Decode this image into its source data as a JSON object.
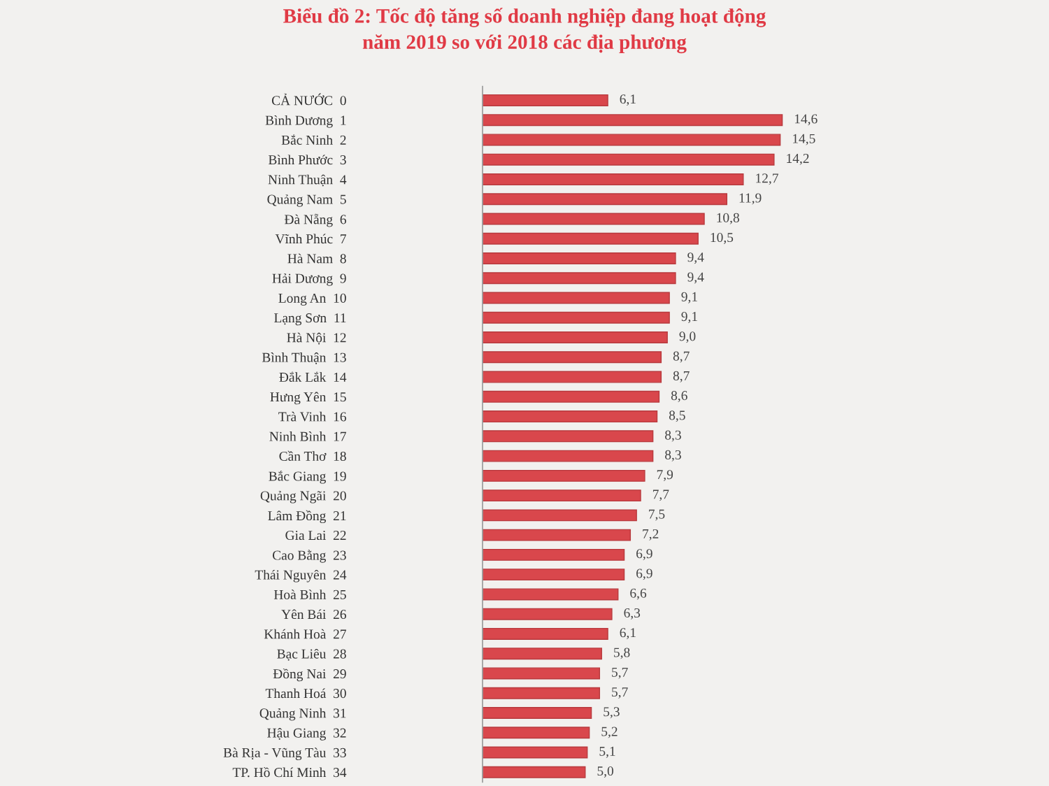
{
  "chart_data": {
    "type": "bar",
    "orientation": "horizontal",
    "title": "Biểu đồ 2: Tốc độ tăng số doanh nghiệp đang hoạt động\nnăm 2019 so với 2018 các địa phương",
    "categories": [
      "CẢ NƯỚC  0",
      "Bình Dương  1",
      "Bắc Ninh  2",
      "Bình Phước  3",
      "Ninh Thuận  4",
      "Quảng Nam  5",
      "Đà Nẵng  6",
      "Vĩnh Phúc  7",
      "Hà Nam  8",
      "Hải Dương  9",
      "Long An  10",
      "Lạng Sơn  11",
      "Hà Nội  12",
      "Bình Thuận  13",
      "Đắk Lắk  14",
      "Hưng Yên  15",
      "Trà Vinh  16",
      "Ninh Bình  17",
      "Cần Thơ  18",
      "Bắc Giang  19",
      "Quảng Ngãi  20",
      "Lâm Đồng  21",
      "Gia Lai  22",
      "Cao Bằng  23",
      "Thái Nguyên  24",
      "Hoà Bình  25",
      "Yên Bái  26",
      "Khánh Hoà  27",
      "Bạc Liêu  28",
      "Đồng Nai  29",
      "Thanh Hoá  30",
      "Quảng Ninh  31",
      "Hậu Giang  32",
      "Bà Rịa - Vũng Tàu  33",
      "TP. Hồ Chí Minh  34"
    ],
    "values": [
      6.1,
      14.6,
      14.5,
      14.2,
      12.7,
      11.9,
      10.8,
      10.5,
      9.4,
      9.4,
      9.1,
      9.1,
      9.0,
      8.7,
      8.7,
      8.6,
      8.5,
      8.3,
      8.3,
      7.9,
      7.7,
      7.5,
      7.2,
      6.9,
      6.9,
      6.6,
      6.3,
      6.1,
      5.8,
      5.7,
      5.7,
      5.3,
      5.2,
      5.1,
      5.0
    ],
    "value_labels": [
      "6,1",
      "14,6",
      "14,5",
      "14,2",
      "12,7",
      "11,9",
      "10,8",
      "10,5",
      "9,4",
      "9,4",
      "9,1",
      "9,1",
      "9,0",
      "8,7",
      "8,7",
      "8,6",
      "8,5",
      "8,3",
      "8,3",
      "7,9",
      "7,7",
      "7,5",
      "7,2",
      "6,9",
      "6,9",
      "6,6",
      "6,3",
      "6,1",
      "5,8",
      "5,7",
      "5,7",
      "5,3",
      "5,2",
      "5,1",
      "5,0"
    ],
    "color": "#d9474c",
    "tick_labels": "y",
    "grid": false,
    "legend": false
  }
}
